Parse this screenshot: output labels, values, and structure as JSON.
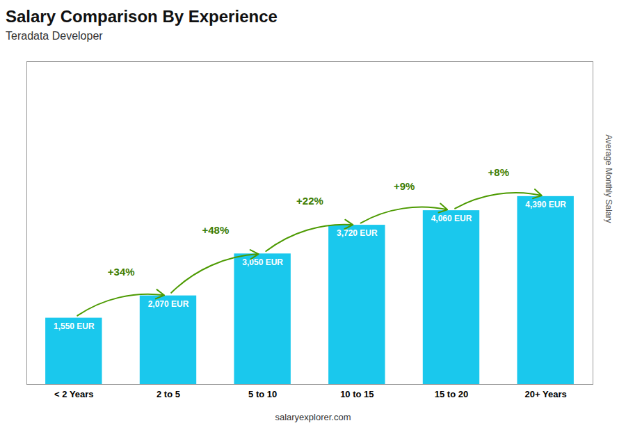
{
  "chart_data": {
    "type": "bar",
    "title": "Salary Comparison By Experience",
    "subtitle": "Teradata Developer",
    "ylabel": "Average Monthly Salary",
    "caption": "salaryexplorer.com",
    "categories": [
      "< 2 Years",
      "2 to 5",
      "5 to 10",
      "10 to 15",
      "15 to 20",
      "20+ Years"
    ],
    "values": [
      1550,
      2070,
      3050,
      3720,
      4060,
      4390
    ],
    "value_labels": [
      "1,550 EUR",
      "2,070 EUR",
      "3,050 EUR",
      "3,720 EUR",
      "4,060 EUR",
      "4,390 EUR"
    ],
    "annotations": [
      "+34%",
      "+48%",
      "+22%",
      "+9%",
      "+8%"
    ],
    "color": "#1ac8ed",
    "ylim": [
      0,
      7540
    ],
    "grid": false,
    "data_labels": true,
    "tick_labels": "x"
  }
}
